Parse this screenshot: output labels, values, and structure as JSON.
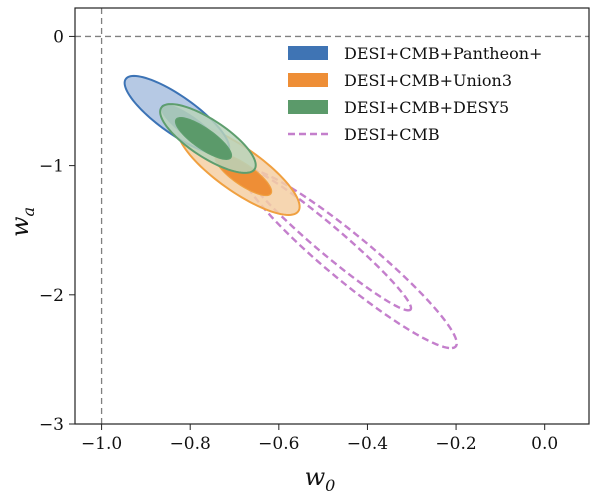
{
  "chart_data": {
    "type": "contour",
    "title": "",
    "xlabel": "w",
    "xlabel_subscript": "0",
    "ylabel": "w",
    "ylabel_subscript": "a",
    "xlim": [
      -1.06,
      0.1
    ],
    "ylim": [
      -3.0,
      0.22
    ],
    "xticks": [
      {
        "value": -1.0,
        "label": "−1.0"
      },
      {
        "value": -0.8,
        "label": "−0.8"
      },
      {
        "value": -0.6,
        "label": "−0.6"
      },
      {
        "value": -0.4,
        "label": "−0.4"
      },
      {
        "value": -0.2,
        "label": "−0.2"
      },
      {
        "value": 0.0,
        "label": "0.0"
      }
    ],
    "yticks": [
      {
        "value": 0,
        "label": "0"
      },
      {
        "value": -1,
        "label": "−1"
      },
      {
        "value": -2,
        "label": "−2"
      },
      {
        "value": -3,
        "label": "−3"
      }
    ],
    "reference_lines": {
      "w0": -1.0,
      "wa": 0.0
    },
    "legend_position": "top-right",
    "series": [
      {
        "name": "DESI+CMB",
        "style": "dashed",
        "color": "#c47fcc",
        "contours": [
          {
            "level": "68%",
            "center": [
              -0.49,
              -1.57
            ],
            "semi_major": 0.58,
            "semi_minor": 0.045,
            "slope": -3.0
          },
          {
            "level": "95%",
            "center": [
              -0.44,
              -1.72
            ],
            "semi_major": 0.73,
            "semi_minor": 0.075,
            "slope": -3.0
          }
        ]
      },
      {
        "name": "DESI+CMB+Union3",
        "style": "filled",
        "color": "#f0a040",
        "outer_fill": "#f5cfa3",
        "inner_fill": "#ee8e36",
        "contours": [
          {
            "level": "68%",
            "center": [
              -0.68,
              -1.07
            ],
            "semi_major": 0.17,
            "semi_minor": 0.036,
            "slope": -3.0
          },
          {
            "level": "95%",
            "center": [
              -0.69,
              -1.03
            ],
            "semi_major": 0.37,
            "semi_minor": 0.075,
            "slope": -3.0
          }
        ]
      },
      {
        "name": "DESI+CMB+Pantheon+",
        "style": "filled",
        "color": "#3c73b5",
        "outer_fill": "#a9c0df",
        "inner_fill": "#3f74b4",
        "contours": [
          {
            "level": "68%",
            "center": [
              -0.8,
              -0.7
            ],
            "semi_major": 0.18,
            "semi_minor": 0.033,
            "slope": -3.0
          },
          {
            "level": "95%",
            "center": [
              -0.83,
              -0.61
            ],
            "semi_major": 0.32,
            "semi_minor": 0.064,
            "slope": -3.0
          }
        ]
      },
      {
        "name": "DESI+CMB+DESY5",
        "style": "filled",
        "color": "#5e9e6e",
        "outer_fill": "#b8d4bb",
        "inner_fill": "#5b9a6a",
        "contours": [
          {
            "level": "68%",
            "center": [
              -0.77,
              -0.79
            ],
            "semi_major": 0.17,
            "semi_minor": 0.035,
            "slope": -3.0
          },
          {
            "level": "95%",
            "center": [
              -0.76,
              -0.79
            ],
            "semi_major": 0.28,
            "semi_minor": 0.065,
            "slope": -3.0
          }
        ]
      }
    ],
    "legend": [
      {
        "label": "DESI+CMB+Pantheon+",
        "swatch": "filled",
        "color": "#3f74b4"
      },
      {
        "label": "DESI+CMB+Union3",
        "swatch": "filled",
        "color": "#ee8e36"
      },
      {
        "label": "DESI+CMB+DESY5",
        "swatch": "filled",
        "color": "#5b9a6a"
      },
      {
        "label": "DESI+CMB",
        "swatch": "dashed",
        "color": "#c47fcc"
      }
    ]
  }
}
